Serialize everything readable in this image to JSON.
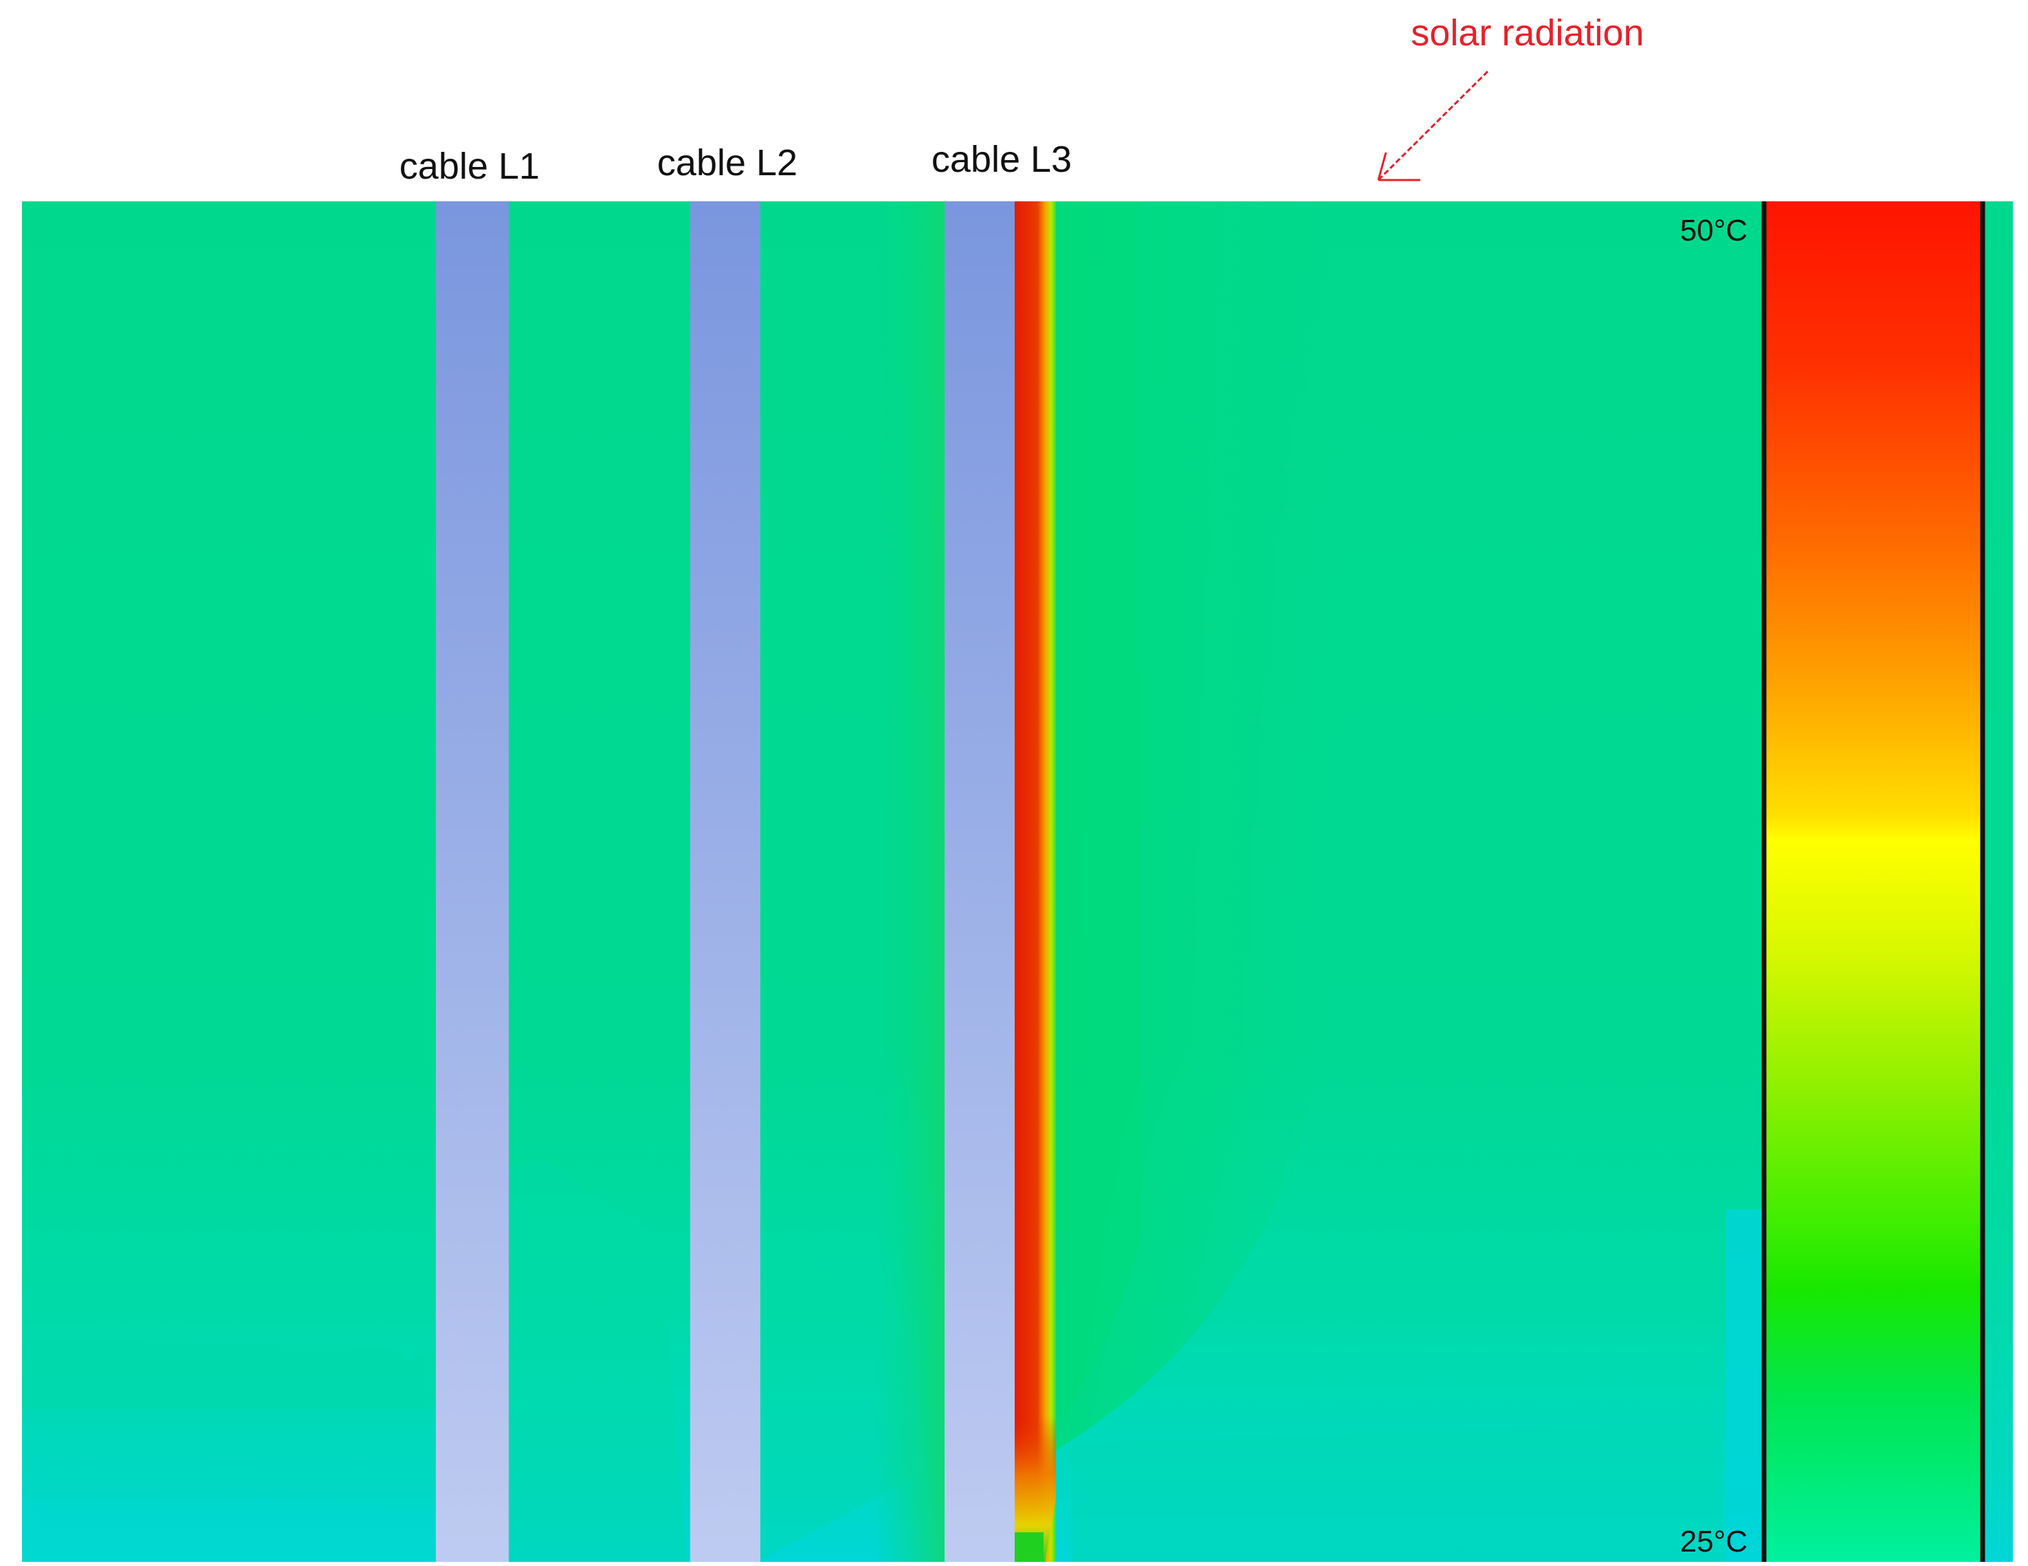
{
  "labels": {
    "cable_l1": "cable L1",
    "cable_l2": "cable L2",
    "cable_l3": "cable L3",
    "solar_radiation": "solar radiation"
  },
  "colorbar": {
    "max_label": "50°C",
    "min_label": "25°C",
    "min_value": 25,
    "max_value": 50,
    "unit": "°C"
  },
  "colors": {
    "background_field": "#00D88E",
    "cable_fill_top": "#7A96DE",
    "cable_fill_bottom": "#BCCAF0",
    "hot_layer": "#E42000",
    "annotation": "#E8202A",
    "label": "#111111"
  }
}
